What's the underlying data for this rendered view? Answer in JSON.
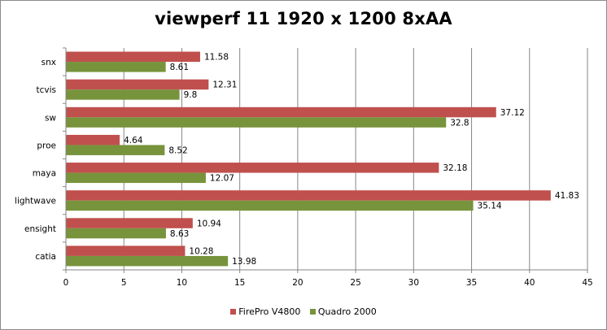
{
  "chart_data": {
    "type": "bar",
    "orientation": "horizontal",
    "title": "viewperf 11 1920 x 1200 8xAA",
    "xlabel": "",
    "ylabel": "",
    "xlim": [
      0,
      45
    ],
    "x_ticks": [
      "0",
      "5",
      "10",
      "15",
      "20",
      "25",
      "30",
      "35",
      "40",
      "45"
    ],
    "grid": true,
    "legend_position": "bottom",
    "categories": [
      "snx",
      "tcvis",
      "sw",
      "proe",
      "maya",
      "lightwave",
      "ensight",
      "catia"
    ],
    "series": [
      {
        "name": "FirePro V4800",
        "color": "#c0504d",
        "values": [
          11.58,
          12.31,
          37.12,
          4.64,
          32.18,
          41.83,
          10.94,
          10.28
        ],
        "labels": [
          "11.58",
          "12.31",
          "37.12",
          "4.64",
          "32.18",
          "41.83",
          "10.94",
          "10.28"
        ]
      },
      {
        "name": "Quadro 2000",
        "color": "#77933c",
        "values": [
          8.61,
          9.8,
          32.8,
          8.52,
          12.07,
          35.14,
          8.63,
          13.98
        ],
        "labels": [
          "8.61",
          "9.8",
          "32.8",
          "8.52",
          "12.07",
          "35.14",
          "8.63",
          "13.98"
        ]
      }
    ]
  }
}
